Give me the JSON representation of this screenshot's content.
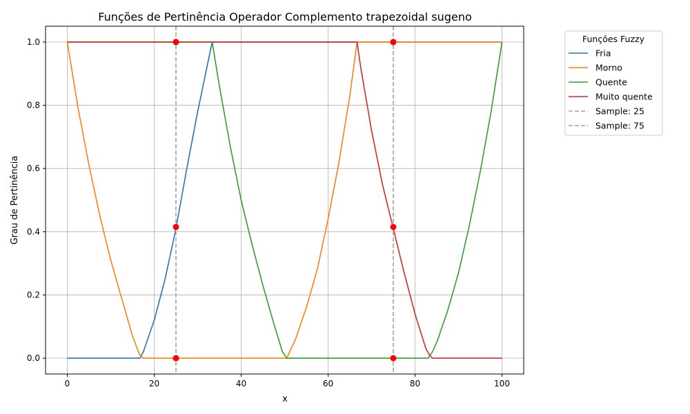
{
  "chart_data": {
    "type": "line",
    "title": "Funções de Pertinência Operador Complemento trapezoidal sugeno",
    "xlabel": "x",
    "ylabel": "Grau de Pertinência",
    "xlim": [
      -5,
      105
    ],
    "ylim": [
      -0.05,
      1.05
    ],
    "xticks": [
      0,
      20,
      40,
      60,
      80,
      100
    ],
    "yticks": [
      0.0,
      0.2,
      0.4,
      0.6,
      0.8,
      1.0
    ],
    "xtick_labels": [
      "0",
      "20",
      "40",
      "60",
      "80",
      "100"
    ],
    "ytick_labels": [
      "0.0",
      "0.2",
      "0.4",
      "0.6",
      "0.8",
      "1.0"
    ],
    "grid": true,
    "legend": {
      "title": "Funções Fuzzy",
      "placement": "outside-top-right"
    },
    "series": [
      {
        "name": "Fria",
        "color": "#1f77b4",
        "style": "solid",
        "x": [
          0,
          16.67,
          17.5,
          20,
          22.5,
          25,
          27.5,
          30,
          33.33,
          35,
          40,
          50,
          60,
          66.67,
          70,
          80,
          83.33,
          90,
          100
        ],
        "y": [
          0,
          0,
          0.02,
          0.12,
          0.25,
          0.41,
          0.6,
          0.78,
          1,
          1,
          1,
          1,
          1,
          1,
          1,
          1,
          1,
          1,
          1
        ]
      },
      {
        "name": "Morno",
        "color": "#ff7f0e",
        "style": "solid",
        "x": [
          0,
          2.5,
          5,
          7.5,
          10,
          12.5,
          15,
          16.67,
          17.5,
          20,
          30,
          40,
          49.5,
          50.5,
          52.5,
          55,
          57.5,
          60,
          62.5,
          65,
          66.67,
          70,
          80,
          90,
          100
        ],
        "y": [
          1,
          0.79,
          0.61,
          0.45,
          0.31,
          0.19,
          0.07,
          0.01,
          0,
          0,
          0,
          0,
          0,
          0,
          0.06,
          0.16,
          0.28,
          0.44,
          0.62,
          0.83,
          1,
          1,
          1,
          1,
          1
        ]
      },
      {
        "name": "Quente",
        "color": "#2ca02c",
        "style": "solid",
        "x": [
          0,
          10,
          20,
          30,
          33.33,
          35,
          37.5,
          40,
          42.5,
          45,
          47.5,
          49.5,
          50.5,
          60,
          70,
          83,
          84,
          85,
          87.5,
          90,
          92.5,
          95,
          97.5,
          100
        ],
        "y": [
          1,
          1,
          1,
          1,
          1,
          0.86,
          0.67,
          0.5,
          0.36,
          0.23,
          0.11,
          0.02,
          0,
          0,
          0,
          0,
          0.02,
          0.05,
          0.15,
          0.27,
          0.42,
          0.59,
          0.78,
          1
        ]
      },
      {
        "name": "Muito quente",
        "color": "#d62728",
        "style": "solid",
        "x": [
          0,
          10,
          20,
          30,
          40,
          50,
          60,
          66.67,
          67.5,
          70,
          72.5,
          75,
          77.5,
          80,
          82.5,
          83.33,
          84,
          90,
          100
        ],
        "y": [
          1,
          1,
          1,
          1,
          1,
          1,
          1,
          1,
          0.92,
          0.72,
          0.55,
          0.41,
          0.27,
          0.14,
          0.03,
          0.01,
          0,
          0,
          0
        ]
      },
      {
        "name": "Sample: 25",
        "color": "#a0a0a0",
        "style": "dashed",
        "vline": 25
      },
      {
        "name": "Sample: 75",
        "color": "#a0a0a0",
        "style": "dashed",
        "vline": 75
      }
    ],
    "markers": {
      "color": "#ff0000",
      "points": [
        {
          "x": 25,
          "y": 1.0
        },
        {
          "x": 25,
          "y": 0.415
        },
        {
          "x": 25,
          "y": 0.0
        },
        {
          "x": 75,
          "y": 1.0
        },
        {
          "x": 75,
          "y": 0.415
        },
        {
          "x": 75,
          "y": 0.0
        }
      ]
    }
  }
}
